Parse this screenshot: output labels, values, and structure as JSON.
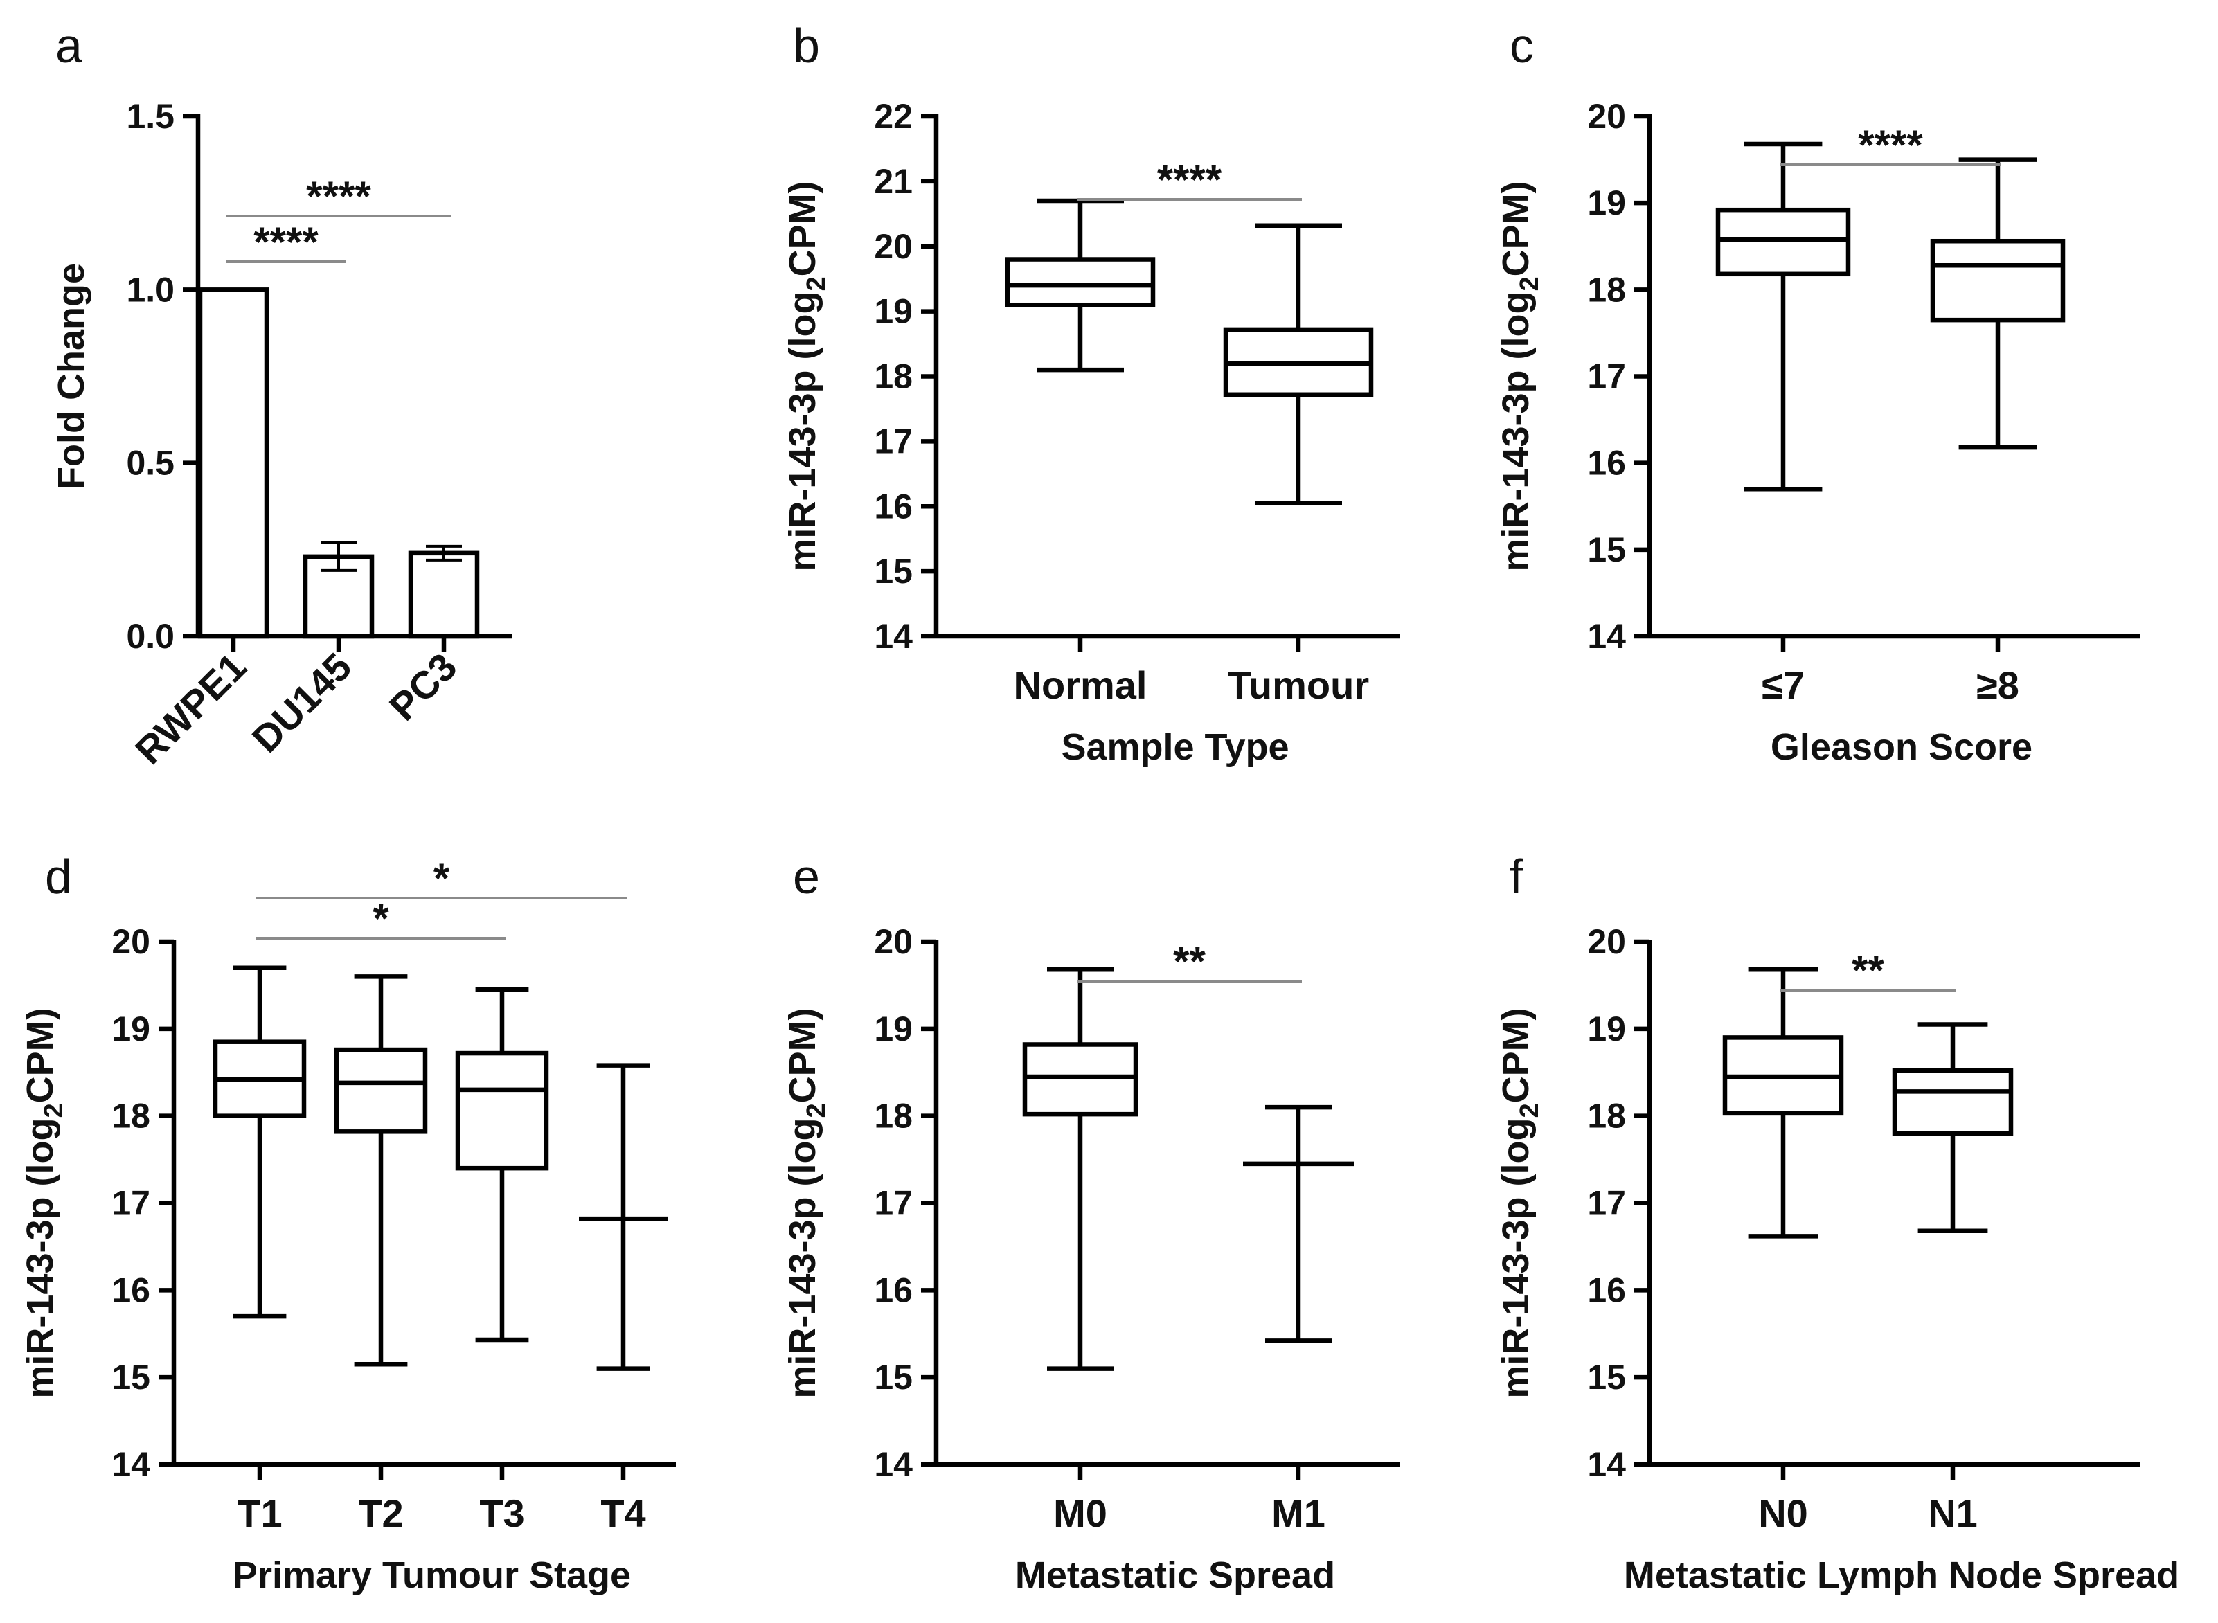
{
  "chart_data": [
    {
      "panel": "a",
      "type": "bar",
      "ylabel": "Fold Change",
      "xlabel": "",
      "ylim": [
        0,
        1.5
      ],
      "yticks": [
        0.0,
        0.5,
        1.0,
        1.5
      ],
      "ytick_labels": [
        "0.0",
        "0.5",
        "1.0",
        "1.5"
      ],
      "categories": [
        "RWPE1",
        "DU145",
        "PC3"
      ],
      "values": [
        1.0,
        0.23,
        0.24
      ],
      "errors": [
        0,
        0.04,
        0.02
      ],
      "significance": [
        {
          "from": 0,
          "to": 1,
          "label": "****"
        },
        {
          "from": 0,
          "to": 2,
          "label": "****"
        }
      ]
    },
    {
      "panel": "b",
      "type": "box",
      "ylabel_parts": [
        "miR-143-3p (log",
        "2",
        "CPM)"
      ],
      "xlabel": "Sample Type",
      "ylim": [
        14,
        22
      ],
      "yticks": [
        14,
        15,
        16,
        17,
        18,
        19,
        20,
        21,
        22
      ],
      "ytick_labels": [
        "14",
        "15",
        "16",
        "17",
        "18",
        "19",
        "20",
        "21",
        "22"
      ],
      "categories": [
        "Normal",
        "Tumour"
      ],
      "boxes": [
        {
          "min": 18.1,
          "q1": 19.1,
          "median": 19.4,
          "q3": 19.8,
          "max": 20.7
        },
        {
          "min": 16.05,
          "q1": 17.72,
          "median": 18.2,
          "q3": 18.72,
          "max": 20.32
        }
      ],
      "significance": [
        {
          "from": 0,
          "to": 1,
          "label": "****"
        }
      ]
    },
    {
      "panel": "c",
      "type": "box",
      "ylabel_parts": [
        "miR-143-3p (log",
        "2",
        "CPM)"
      ],
      "xlabel": "Gleason Score",
      "ylim": [
        14,
        20
      ],
      "yticks": [
        14,
        15,
        16,
        17,
        18,
        19,
        20
      ],
      "ytick_labels": [
        "14",
        "15",
        "16",
        "17",
        "18",
        "19",
        "20"
      ],
      "categories": [
        "≤7",
        "≥8"
      ],
      "boxes": [
        {
          "min": 15.7,
          "q1": 18.18,
          "median": 18.58,
          "q3": 18.92,
          "max": 19.68
        },
        {
          "min": 16.18,
          "q1": 17.65,
          "median": 18.28,
          "q3": 18.56,
          "max": 19.5
        }
      ],
      "significance": [
        {
          "from": 0,
          "to": 1,
          "label": "****"
        }
      ]
    },
    {
      "panel": "d",
      "type": "box",
      "ylabel_parts": [
        "miR-143-3p (log",
        "2",
        "CPM)"
      ],
      "xlabel": "Primary Tumour Stage",
      "ylim": [
        14,
        20
      ],
      "yticks": [
        14,
        15,
        16,
        17,
        18,
        19,
        20
      ],
      "ytick_labels": [
        "14",
        "15",
        "16",
        "17",
        "18",
        "19",
        "20"
      ],
      "categories": [
        "T1",
        "T2",
        "T3",
        "T4"
      ],
      "boxes": [
        {
          "min": 15.7,
          "q1": 18.0,
          "median": 18.42,
          "q3": 18.85,
          "max": 19.7
        },
        {
          "min": 15.15,
          "q1": 17.82,
          "median": 18.38,
          "q3": 18.76,
          "max": 19.6
        },
        {
          "min": 15.43,
          "q1": 17.4,
          "median": 18.3,
          "q3": 18.72,
          "max": 19.45
        },
        {
          "min": 15.1,
          "q1": 16.82,
          "median": 16.82,
          "q3": 16.82,
          "max": 18.58
        }
      ],
      "significance": [
        {
          "from": 0,
          "to": 2,
          "label": "*"
        },
        {
          "from": 0,
          "to": 3,
          "label": "*"
        }
      ]
    },
    {
      "panel": "e",
      "type": "box",
      "ylabel_parts": [
        "miR-143-3p (log",
        "2",
        "CPM)"
      ],
      "xlabel": "Metastatic Spread",
      "ylim": [
        14,
        20
      ],
      "yticks": [
        14,
        15,
        16,
        17,
        18,
        19,
        20
      ],
      "ytick_labels": [
        "14",
        "15",
        "16",
        "17",
        "18",
        "19",
        "20"
      ],
      "categories": [
        "M0",
        "M1"
      ],
      "boxes": [
        {
          "min": 15.1,
          "q1": 18.02,
          "median": 18.45,
          "q3": 18.82,
          "max": 19.68
        },
        {
          "min": 15.42,
          "q1": 17.45,
          "median": 17.45,
          "q3": 17.45,
          "max": 18.1
        }
      ],
      "significance": [
        {
          "from": 0,
          "to": 1,
          "label": "**"
        }
      ]
    },
    {
      "panel": "f",
      "type": "box",
      "ylabel_parts": [
        "miR-143-3p (log",
        "2",
        "CPM)"
      ],
      "xlabel": "Metastatic Lymph Node Spread",
      "ylim": [
        14,
        20
      ],
      "yticks": [
        14,
        15,
        16,
        17,
        18,
        19,
        20
      ],
      "ytick_labels": [
        "14",
        "15",
        "16",
        "17",
        "18",
        "19",
        "20"
      ],
      "categories": [
        "N0",
        "N1"
      ],
      "boxes": [
        {
          "min": 16.62,
          "q1": 18.03,
          "median": 18.45,
          "q3": 18.9,
          "max": 19.68
        },
        {
          "min": 16.68,
          "q1": 17.8,
          "median": 18.28,
          "q3": 18.52,
          "max": 19.05
        }
      ],
      "significance": [
        {
          "from": 0,
          "to": 1,
          "label": "**"
        }
      ]
    }
  ]
}
